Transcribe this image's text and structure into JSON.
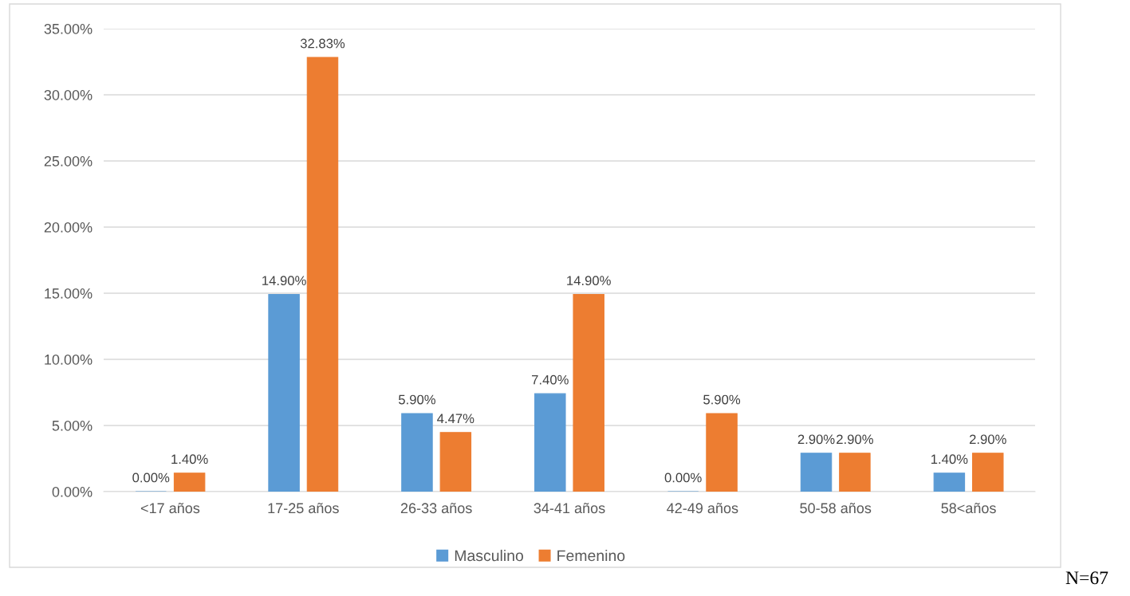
{
  "chart_data": {
    "type": "bar",
    "categories": [
      "<17 años",
      "17-25 años",
      "26-33 años",
      "34-41 años",
      "42-49 años",
      "50-58 años",
      "58<años"
    ],
    "series": [
      {
        "name": "Masculino",
        "color": "#5b9bd5",
        "values": [
          0,
          14.9,
          5.9,
          7.4,
          0,
          2.9,
          1.4
        ],
        "value_labels": [
          "0.00%",
          "14.90%",
          "5.90%",
          "7.40%",
          "0.00%",
          "2.90%",
          "1.40%"
        ]
      },
      {
        "name": "Femenino",
        "color": "#ed7d31",
        "values": [
          1.4,
          32.83,
          4.47,
          14.9,
          5.9,
          2.9,
          2.9
        ],
        "value_labels": [
          "1.40%",
          "32.83%",
          "4.47%",
          "14.90%",
          "5.90%",
          "2.90%",
          "2.90%"
        ]
      }
    ],
    "ylim": [
      0,
      35
    ],
    "yticks": [
      {
        "value": 0,
        "label": "0.00%"
      },
      {
        "value": 5,
        "label": "5.00%"
      },
      {
        "value": 10,
        "label": "10.00%"
      },
      {
        "value": 15,
        "label": "15.00%"
      },
      {
        "value": 20,
        "label": "20.00%"
      },
      {
        "value": 25,
        "label": "25.00%"
      },
      {
        "value": 30,
        "label": "30.00%"
      },
      {
        "value": 35,
        "label": "35.00%"
      }
    ],
    "grid": "y",
    "legend": "bottom",
    "annotations": [
      "N=67"
    ]
  }
}
